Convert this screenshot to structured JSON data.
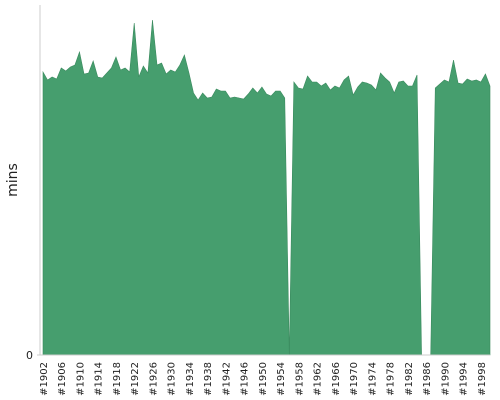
{
  "chart_data": {
    "type": "area",
    "y_label": "mins",
    "color": "#469e6e",
    "categories": [
      "#1902",
      null,
      null,
      null,
      "#1906",
      null,
      null,
      null,
      "#1910",
      null,
      null,
      null,
      "#1914",
      null,
      null,
      null,
      "#1918",
      null,
      null,
      null,
      "#1922",
      null,
      null,
      null,
      "#1926",
      null,
      null,
      null,
      "#1930",
      null,
      null,
      null,
      "#1934",
      null,
      null,
      null,
      "#1938",
      null,
      null,
      null,
      "#1942",
      null,
      null,
      null,
      "#1946",
      null,
      null,
      null,
      "#1950",
      null,
      null,
      null,
      "#1954",
      null,
      null,
      null,
      "#1958",
      null,
      null,
      null,
      "#1962",
      null,
      null,
      null,
      "#1966",
      null,
      null,
      null,
      "#1970",
      null,
      null,
      null,
      "#1974",
      null,
      null,
      null,
      "#1978",
      null,
      null,
      null,
      "#1982",
      null,
      null,
      null,
      "#1986",
      null,
      null,
      null,
      "#1990",
      null,
      null,
      null,
      "#1994",
      null,
      null,
      null,
      "#1998",
      null,
      null
    ],
    "values": [
      283,
      275,
      278,
      276,
      287,
      284,
      288,
      290,
      303,
      281,
      282,
      294,
      278,
      277,
      282,
      287,
      298,
      285,
      287,
      283,
      332,
      278,
      289,
      282,
      335,
      290,
      292,
      281,
      285,
      283,
      290,
      300,
      282,
      262,
      255,
      262,
      257,
      258,
      266,
      264,
      264,
      257,
      258,
      257,
      256,
      261,
      267,
      262,
      268,
      261,
      259,
      264,
      264,
      257,
      0,
      273,
      267,
      266,
      279,
      273,
      273,
      269,
      272,
      265,
      269,
      267,
      275,
      279,
      260,
      268,
      273,
      272,
      270,
      265,
      282,
      277,
      273,
      262,
      273,
      274,
      269,
      269,
      280,
      0,
      0,
      0,
      267,
      271,
      275,
      273,
      295,
      272,
      271,
      276,
      274,
      275,
      273,
      281,
      269
    ],
    "ylim": [
      0,
      350
    ],
    "yticks": [
      0
    ]
  }
}
